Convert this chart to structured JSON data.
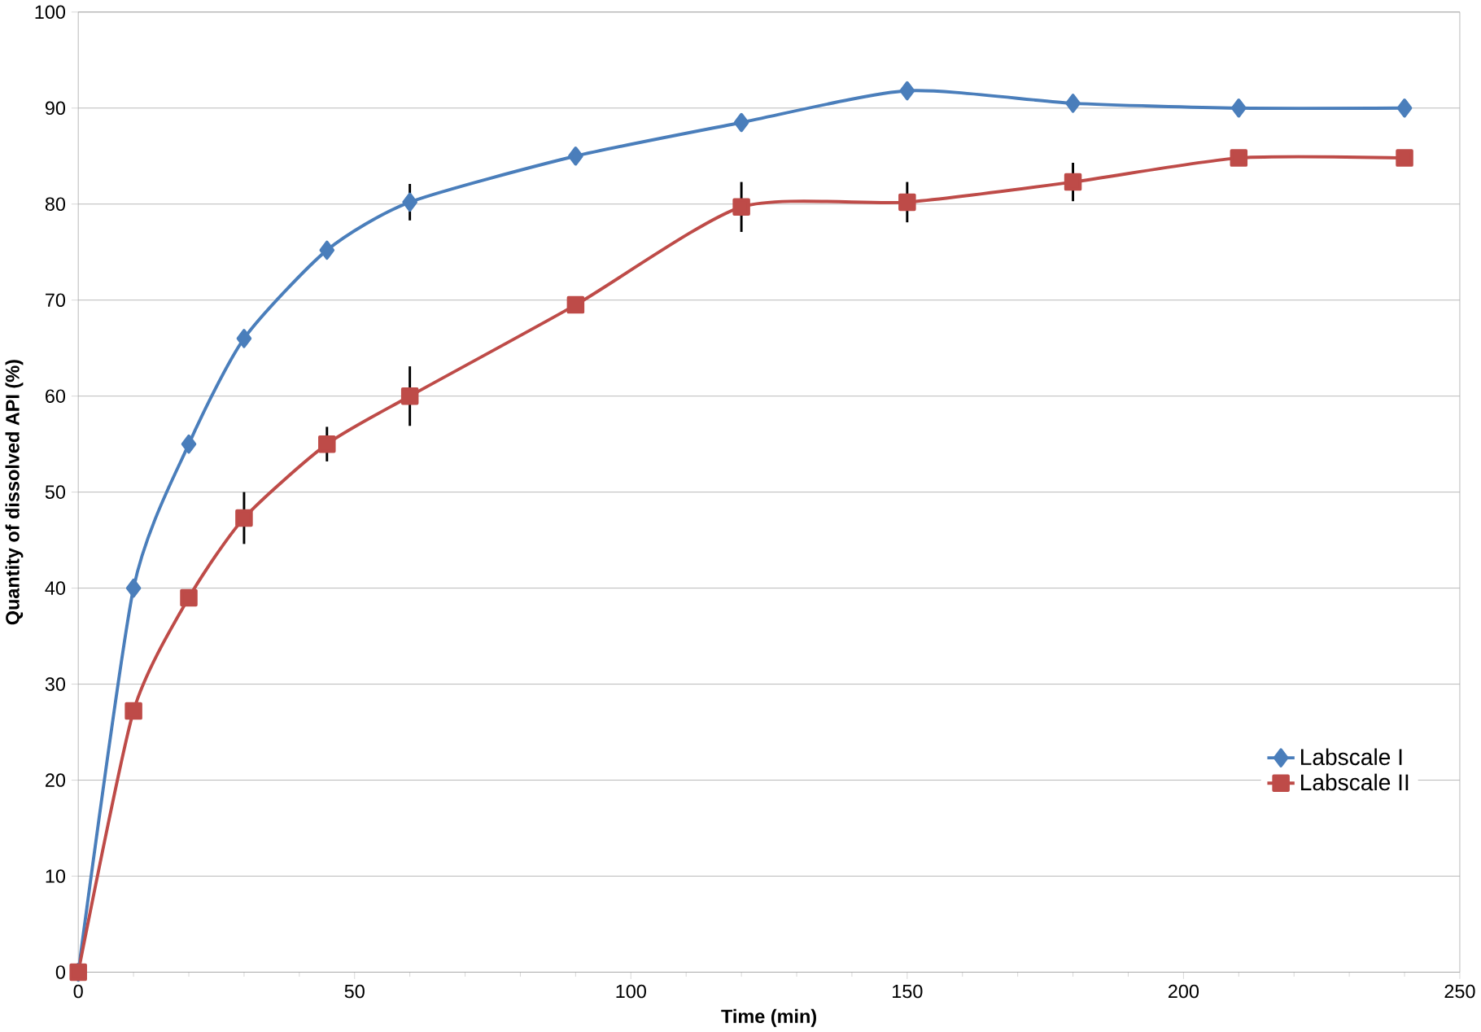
{
  "chart_data": {
    "type": "line",
    "xlabel": "Time (min)",
    "ylabel": "Quantity of dissolved API (%)",
    "x": [
      0,
      10,
      20,
      30,
      45,
      60,
      90,
      120,
      150,
      180,
      210,
      240
    ],
    "series": [
      {
        "name": "Labscale I",
        "color": "#4a7ebb",
        "marker": "diamond",
        "values": [
          0,
          40,
          55,
          66,
          75.2,
          80.2,
          85,
          88.5,
          91.8,
          90.5,
          90,
          90
        ],
        "errors": [
          null,
          null,
          null,
          null,
          null,
          1.9,
          null,
          null,
          null,
          null,
          null,
          null
        ]
      },
      {
        "name": "Labscale II",
        "color": "#be4b48",
        "marker": "square",
        "values": [
          0,
          27.2,
          39,
          47.3,
          55,
          60,
          69.5,
          79.7,
          80.2,
          82.3,
          84.8,
          84.8
        ],
        "errors": [
          null,
          null,
          null,
          2.7,
          1.8,
          3.1,
          null,
          2.6,
          2.1,
          2.0,
          null,
          null
        ]
      }
    ],
    "xlim": [
      0,
      250
    ],
    "xticks": [
      0,
      50,
      100,
      150,
      200,
      250
    ],
    "ylim": [
      0,
      100
    ],
    "yticks": [
      0,
      10,
      20,
      30,
      40,
      50,
      60,
      70,
      80,
      90,
      100
    ],
    "grid": "y",
    "legend": "bottom right",
    "line_style": "solid"
  }
}
